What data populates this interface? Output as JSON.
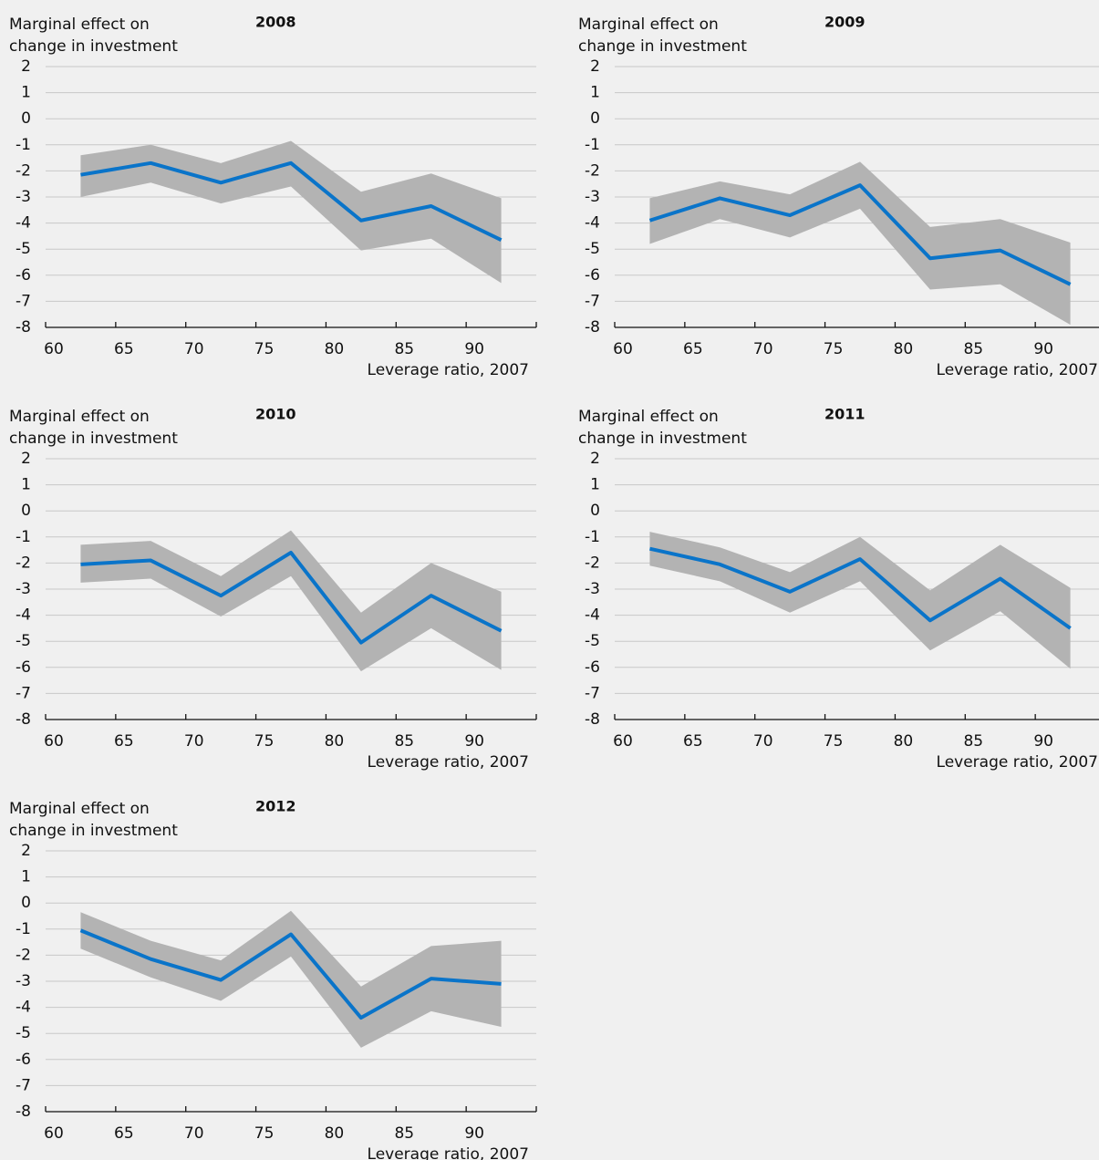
{
  "chart_data": [
    {
      "type": "line",
      "title": "2008",
      "ylabel": [
        "Marginal effect on",
        "change in investment"
      ],
      "xlabel": "Leverage ratio, 2007",
      "x": [
        62.5,
        67.5,
        72.5,
        77.5,
        82.5,
        87.5,
        92.5
      ],
      "values": [
        -2.15,
        -1.7,
        -2.45,
        -1.7,
        -3.9,
        -3.35,
        -4.65
      ],
      "upper": [
        -1.4,
        -1.0,
        -1.7,
        -0.85,
        -2.8,
        -2.1,
        -3.05
      ],
      "lower": [
        -3.0,
        -2.45,
        -3.25,
        -2.6,
        -5.05,
        -4.6,
        -6.3
      ],
      "color": "#0a74c9",
      "band_color": "#b3b3b3",
      "xlim": [
        60,
        95
      ],
      "xticks": [
        60,
        65,
        70,
        75,
        80,
        85,
        90
      ],
      "ylim": [
        -8,
        2
      ],
      "yticks": [
        -8,
        -7,
        -6,
        -5,
        -4,
        -3,
        -2,
        -1,
        0,
        1,
        2
      ],
      "grid": true
    },
    {
      "type": "line",
      "title": "2009",
      "ylabel": [
        "Marginal effect on",
        "change in investment"
      ],
      "xlabel": "Leverage ratio, 2007",
      "x": [
        62.5,
        67.5,
        72.5,
        77.5,
        82.5,
        87.5,
        92.5
      ],
      "values": [
        -3.9,
        -3.05,
        -3.7,
        -2.55,
        -5.35,
        -5.05,
        -6.35
      ],
      "upper": [
        -3.05,
        -2.4,
        -2.9,
        -1.65,
        -4.15,
        -3.85,
        -4.75
      ],
      "lower": [
        -4.8,
        -3.85,
        -4.55,
        -3.45,
        -6.55,
        -6.35,
        -7.9
      ],
      "color": "#0a74c9",
      "band_color": "#b3b3b3",
      "xlim": [
        60,
        95
      ],
      "xticks": [
        60,
        65,
        70,
        75,
        80,
        85,
        90
      ],
      "ylim": [
        -8,
        2
      ],
      "yticks": [
        -8,
        -7,
        -6,
        -5,
        -4,
        -3,
        -2,
        -1,
        0,
        1,
        2
      ],
      "grid": true
    },
    {
      "type": "line",
      "title": "2010",
      "ylabel": [
        "Marginal effect on",
        "change in investment"
      ],
      "xlabel": "Leverage ratio, 2007",
      "x": [
        62.5,
        67.5,
        72.5,
        77.5,
        82.5,
        87.5,
        92.5
      ],
      "values": [
        -2.05,
        -1.9,
        -3.25,
        -1.6,
        -5.05,
        -3.25,
        -4.6
      ],
      "upper": [
        -1.3,
        -1.15,
        -2.5,
        -0.75,
        -3.9,
        -2.0,
        -3.1
      ],
      "lower": [
        -2.75,
        -2.6,
        -4.05,
        -2.5,
        -6.15,
        -4.5,
        -6.1
      ],
      "color": "#0a74c9",
      "band_color": "#b3b3b3",
      "xlim": [
        60,
        95
      ],
      "xticks": [
        60,
        65,
        70,
        75,
        80,
        85,
        90
      ],
      "ylim": [
        -8,
        2
      ],
      "yticks": [
        -8,
        -7,
        -6,
        -5,
        -4,
        -3,
        -2,
        -1,
        0,
        1,
        2
      ],
      "grid": true
    },
    {
      "type": "line",
      "title": "2011",
      "ylabel": [
        "Marginal effect on",
        "change in investment"
      ],
      "xlabel": "Leverage ratio, 2007",
      "x": [
        62.5,
        67.5,
        72.5,
        77.5,
        82.5,
        87.5,
        92.5
      ],
      "values": [
        -1.45,
        -2.05,
        -3.1,
        -1.85,
        -4.2,
        -2.6,
        -4.5
      ],
      "upper": [
        -0.8,
        -1.4,
        -2.35,
        -1.0,
        -3.05,
        -1.3,
        -2.95
      ],
      "lower": [
        -2.1,
        -2.7,
        -3.9,
        -2.7,
        -5.35,
        -3.85,
        -6.05
      ],
      "color": "#0a74c9",
      "band_color": "#b3b3b3",
      "xlim": [
        60,
        95
      ],
      "xticks": [
        60,
        65,
        70,
        75,
        80,
        85,
        90
      ],
      "ylim": [
        -8,
        2
      ],
      "yticks": [
        -8,
        -7,
        -6,
        -5,
        -4,
        -3,
        -2,
        -1,
        0,
        1,
        2
      ],
      "grid": true
    },
    {
      "type": "line",
      "title": "2012",
      "ylabel": [
        "Marginal effect on",
        "change in investment"
      ],
      "xlabel": "Leverage ratio, 2007",
      "x": [
        62.5,
        67.5,
        72.5,
        77.5,
        82.5,
        87.5,
        92.5
      ],
      "values": [
        -1.05,
        -2.15,
        -2.95,
        -1.2,
        -4.4,
        -2.9,
        -3.1
      ],
      "upper": [
        -0.35,
        -1.45,
        -2.2,
        -0.3,
        -3.2,
        -1.65,
        -1.45
      ],
      "lower": [
        -1.75,
        -2.85,
        -3.75,
        -2.05,
        -5.55,
        -4.15,
        -4.75
      ],
      "color": "#0a74c9",
      "band_color": "#b3b3b3",
      "xlim": [
        60,
        95
      ],
      "xticks": [
        60,
        65,
        70,
        75,
        80,
        85,
        90
      ],
      "ylim": [
        -8,
        2
      ],
      "yticks": [
        -8,
        -7,
        -6,
        -5,
        -4,
        -3,
        -2,
        -1,
        0,
        1,
        2
      ],
      "grid": true
    }
  ]
}
